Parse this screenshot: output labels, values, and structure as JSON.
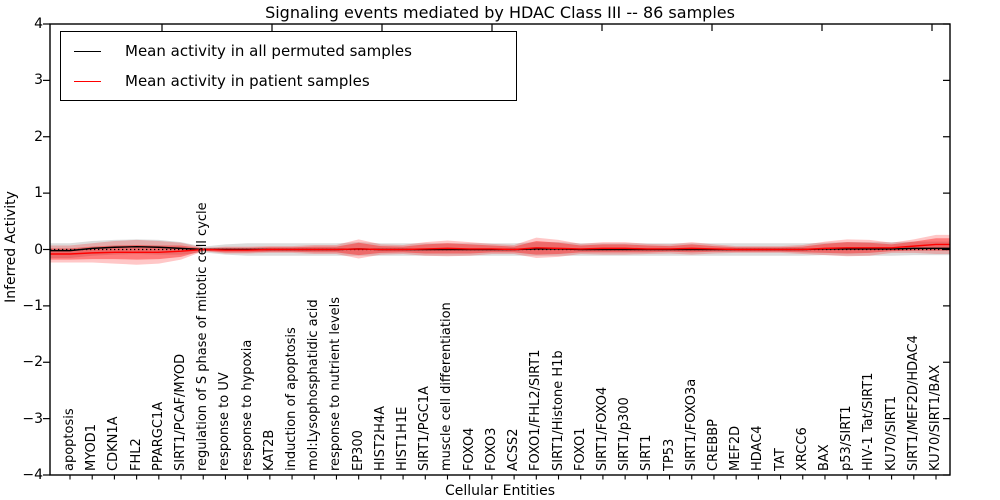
{
  "title": "Signaling events mediated by HDAC Class III -- 86 samples",
  "axes": {
    "ylabel": "Inferred Activity",
    "xlabel": "Cellular Entities",
    "ytick_labels": [
      "−4",
      "−3",
      "−2",
      "−1",
      "0",
      "1",
      "2",
      "3",
      "4"
    ],
    "ytick_values": [
      -4,
      -3,
      -2,
      -1,
      0,
      1,
      2,
      3,
      4
    ]
  },
  "legend": {
    "items": [
      {
        "label": "Mean activity in all permuted samples",
        "color": "#000000"
      },
      {
        "label": "Mean activity in patient samples",
        "color": "#ff0000"
      }
    ]
  },
  "chart_data": {
    "type": "line",
    "title": "Signaling events mediated by HDAC Class III -- 86 samples",
    "xlabel": "Cellular Entities",
    "ylabel": "Inferred Activity",
    "ylim": [
      -4,
      4
    ],
    "grid": false,
    "legend_position": "upper left",
    "categories": [
      "apoptosis",
      "MYOD1",
      "CDKN1A",
      "FHL2",
      "PPARGC1A",
      "SIRT1/PCAF/MYOD",
      "regulation of S phase of mitotic cell cycle",
      "response to UV",
      "response to hypoxia",
      "KAT2B",
      "induction of apoptosis",
      "mol:Lysophosphatidic acid",
      "response to nutrient levels",
      "EP300",
      "HIST2H4A",
      "HIST1H1E",
      "SIRT1/PGC1A",
      "muscle cell differentiation",
      "FOXO4",
      "FOXO3",
      "ACSS2",
      "FOXO1/FHL2/SIRT1",
      "SIRT1/Histone H1b",
      "FOXO1",
      "SIRT1/FOXO4",
      "SIRT1/p300",
      "SIRT1",
      "TP53",
      "SIRT1/FOXO3a",
      "CREBBP",
      "MEF2D",
      "HDAC4",
      "TAT",
      "XRCC6",
      "BAX",
      "p53/SIRT1",
      "HIV-1 Tat/SIRT1",
      "KU70/SIRT1",
      "SIRT1/MEF2D/HDAC4",
      "KU70/SIRT1/BAX"
    ],
    "series": [
      {
        "name": "Mean activity in all permuted samples",
        "color": "#000000",
        "linestyle": "solid",
        "values": [
          -0.02,
          0.02,
          0.04,
          0.05,
          0.04,
          0.02,
          0,
          0,
          0,
          0,
          0,
          0,
          0,
          0.01,
          0,
          0,
          0,
          0,
          0,
          0,
          0,
          0.01,
          0.01,
          0,
          0,
          0,
          0,
          0,
          0,
          0,
          0,
          0,
          0,
          0,
          0.01,
          0.01,
          0.01,
          0.01,
          0.02,
          0.02
        ]
      },
      {
        "name": "Mean activity in patient samples",
        "color": "#ff0000",
        "linestyle": "solid",
        "values": [
          -0.08,
          -0.06,
          -0.05,
          -0.05,
          -0.05,
          -0.03,
          0,
          -0.01,
          -0.01,
          0,
          0,
          0,
          0,
          0.01,
          0,
          0,
          0.01,
          0.02,
          0.01,
          0.01,
          0,
          0.03,
          0.02,
          0.01,
          0.02,
          0.02,
          0.01,
          0.01,
          0.02,
          0.01,
          0,
          0,
          0,
          0,
          0.02,
          0.03,
          0.03,
          0.03,
          0.06,
          0.09
        ]
      }
    ],
    "bands": [
      {
        "name": "permuted samples spread",
        "color": "#8c8c8c",
        "opacity": 0.3,
        "center_series": 0,
        "half_widths": [
          0.13,
          0.13,
          0.13,
          0.13,
          0.13,
          0.11,
          0.05,
          0.09,
          0.11,
          0.11,
          0.11,
          0.11,
          0.11,
          0.12,
          0.11,
          0.11,
          0.11,
          0.11,
          0.11,
          0.11,
          0.11,
          0.12,
          0.12,
          0.11,
          0.11,
          0.11,
          0.11,
          0.11,
          0.11,
          0.11,
          0.11,
          0.11,
          0.11,
          0.11,
          0.11,
          0.12,
          0.12,
          0.12,
          0.12,
          0.12
        ]
      },
      {
        "name": "patient samples spread (outer)",
        "color": "#ff0000",
        "opacity": 0.22,
        "center_series": 1,
        "half_widths": [
          0.15,
          0.17,
          0.2,
          0.22,
          0.2,
          0.15,
          0.03,
          0.06,
          0.06,
          0.06,
          0.06,
          0.08,
          0.08,
          0.17,
          0.09,
          0.08,
          0.12,
          0.14,
          0.12,
          0.09,
          0.08,
          0.18,
          0.15,
          0.09,
          0.11,
          0.11,
          0.09,
          0.08,
          0.11,
          0.08,
          0.06,
          0.06,
          0.06,
          0.08,
          0.12,
          0.15,
          0.14,
          0.09,
          0.12,
          0.17
        ]
      },
      {
        "name": "patient samples spread (inner)",
        "color": "#ff0000",
        "opacity": 0.38,
        "center_series": 1,
        "half_widths": [
          0.1,
          0.11,
          0.12,
          0.13,
          0.12,
          0.1,
          0.02,
          0.04,
          0.04,
          0.04,
          0.04,
          0.05,
          0.05,
          0.11,
          0.06,
          0.05,
          0.08,
          0.09,
          0.08,
          0.06,
          0.05,
          0.12,
          0.1,
          0.06,
          0.07,
          0.07,
          0.06,
          0.05,
          0.07,
          0.05,
          0.04,
          0.04,
          0.04,
          0.05,
          0.08,
          0.1,
          0.09,
          0.06,
          0.08,
          0.11
        ]
      }
    ],
    "zero_line": {
      "y": 0,
      "color": "#000000",
      "linestyle": "dotted"
    }
  }
}
